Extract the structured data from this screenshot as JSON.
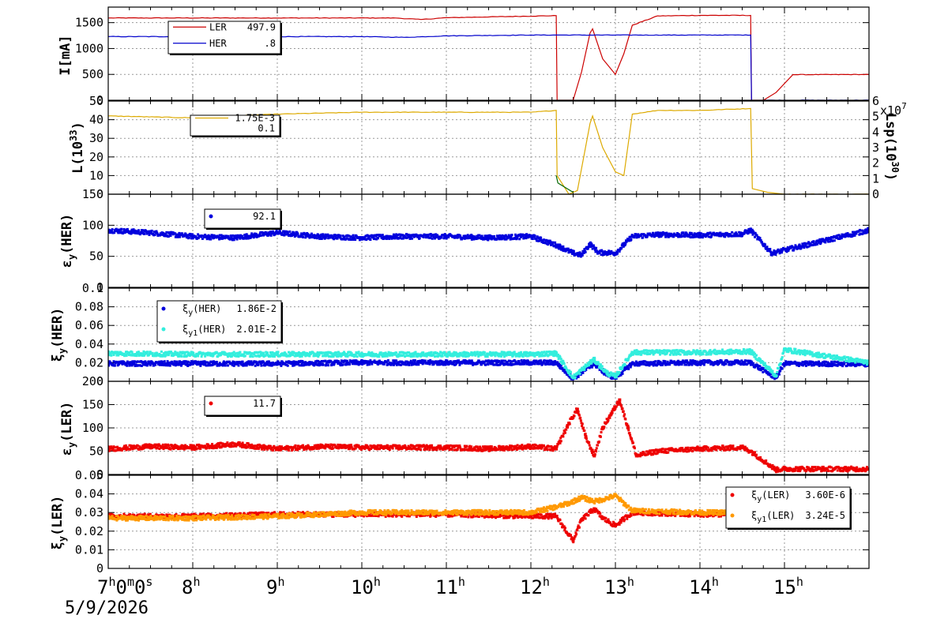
{
  "date_label": "5/9/2026",
  "chart_data": {
    "type": "line",
    "x_axis": {
      "unit": "hour of day",
      "range": [
        7.0,
        16.0
      ],
      "ticks": [
        {
          "value": 7,
          "label": "7",
          "sup": "h",
          "extra": [
            {
              "t": "0",
              "s": "m"
            },
            {
              "t": "0",
              "s": "s"
            }
          ]
        },
        {
          "value": 8,
          "label": "8",
          "sup": "h"
        },
        {
          "value": 9,
          "label": "9",
          "sup": "h"
        },
        {
          "value": 10,
          "label": "10",
          "sup": "h"
        },
        {
          "value": 11,
          "label": "11",
          "sup": "h"
        },
        {
          "value": 12,
          "label": "12",
          "sup": "h"
        },
        {
          "value": 13,
          "label": "13",
          "sup": "h"
        },
        {
          "value": 14,
          "label": "14",
          "sup": "h"
        },
        {
          "value": 15,
          "label": "15",
          "sup": "h"
        }
      ],
      "grid": true
    },
    "panels": [
      {
        "id": "current",
        "ylabel": "I[mA]",
        "ylim": [
          0,
          1800
        ],
        "yticks": [
          {
            "v": 0,
            "t": "0"
          },
          {
            "v": 500,
            "t": "500"
          },
          {
            "v": 1000,
            "t": "1000"
          },
          {
            "v": 1500,
            "t": "1500"
          }
        ],
        "legend": [
          {
            "name": "LER",
            "value": "497.9",
            "color": "#cc0000",
            "style": "line"
          },
          {
            "name": "HER",
            "value": ".8",
            "color": "#0000cc",
            "style": "line"
          }
        ],
        "series": [
          {
            "name": "LER",
            "color": "#cc0000",
            "kind": "line",
            "x": [
              7.0,
              10.4,
              10.7,
              11.0,
              12.3,
              12.31,
              12.5,
              12.6,
              12.7,
              12.73,
              12.85,
              13.0,
              13.1,
              13.2,
              13.5,
              14.0,
              14.6,
              14.61,
              14.75,
              14.9,
              15.1,
              16.0
            ],
            "y": [
              1590,
              1590,
              1560,
              1595,
              1635,
              0,
              0,
              550,
              1300,
              1380,
              800,
              500,
              900,
              1450,
              1630,
              1640,
              1640,
              0,
              0,
              150,
              495,
              497.9
            ]
          },
          {
            "name": "HER",
            "color": "#0000cc",
            "kind": "line",
            "x": [
              7.0,
              10.0,
              10.5,
              11.0,
              12.0,
              14.6,
              14.61,
              16.0
            ],
            "y": [
              1230,
              1230,
              1215,
              1245,
              1260,
              1260,
              0,
              0.8
            ]
          }
        ]
      },
      {
        "id": "luminosity",
        "ylabel": "L(10^33)",
        "ylim": [
          0,
          50
        ],
        "yticks": [
          {
            "v": 0,
            "t": "0"
          },
          {
            "v": 10,
            "t": "10"
          },
          {
            "v": 20,
            "t": "20"
          },
          {
            "v": 30,
            "t": "30"
          },
          {
            "v": 40,
            "t": "40"
          },
          {
            "v": 50,
            "t": "50"
          }
        ],
        "right_axis": {
          "label": "Lsp(10^30)",
          "multiplier": "x10",
          "multiplier_exp": "7",
          "ticks": [
            "0",
            "1",
            "2",
            "3",
            "4",
            "5",
            "6"
          ]
        },
        "legend": [
          {
            "name": "",
            "value": "1.75E-3",
            "color": "#ddaa00",
            "style": "line"
          },
          {
            "name": "",
            "value": "0.1",
            "color": "#000000",
            "style": "none"
          }
        ],
        "series": [
          {
            "name": "L",
            "color": "#ddaa00",
            "kind": "line",
            "x": [
              7.0,
              8.0,
              9.0,
              10.0,
              11.0,
              12.0,
              12.3,
              12.31,
              12.45,
              12.55,
              12.7,
              12.73,
              12.85,
              13.0,
              13.1,
              13.2,
              13.5,
              14.0,
              14.6,
              14.62,
              14.8,
              15.0,
              15.5,
              16.0
            ],
            "y": [
              42,
              41,
              43,
              44,
              44,
              44,
              45,
              10,
              0,
              2,
              38,
              42,
              25,
              12,
              10,
              43,
              45,
              45,
              46,
              3,
              1,
              0,
              0,
              0
            ]
          },
          {
            "name": "Lsp",
            "color": "#006600",
            "kind": "line",
            "x": [
              12.3,
              12.32,
              12.5
            ],
            "y": [
              10,
              6,
              1
            ]
          }
        ]
      },
      {
        "id": "eps_her",
        "ylabel": "εy(HER)",
        "ylim": [
          0,
          150
        ],
        "yticks": [
          {
            "v": 0,
            "t": "0"
          },
          {
            "v": 50,
            "t": "50"
          },
          {
            "v": 100,
            "t": "100"
          },
          {
            "v": 150,
            "t": "150"
          }
        ],
        "legend": [
          {
            "name": "",
            "value": "92.1",
            "color": "#0000dd",
            "style": "dot"
          }
        ],
        "series": [
          {
            "name": "εy(HER)",
            "color": "#0000dd",
            "kind": "scatter",
            "x": [
              7.0,
              7.5,
              8.0,
              8.5,
              9.0,
              9.5,
              10.0,
              10.5,
              11.0,
              11.5,
              12.0,
              12.3,
              12.35,
              12.5,
              12.6,
              12.7,
              12.8,
              12.9,
              13.0,
              13.2,
              13.5,
              14.0,
              14.5,
              14.6,
              14.85,
              16.0
            ],
            "y": [
              92,
              88,
              82,
              80,
              88,
              82,
              80,
              82,
              82,
              80,
              82,
              68,
              65,
              55,
              52,
              70,
              56,
              56,
              55,
              82,
              85,
              84,
              86,
              92,
              55,
              92.1
            ]
          }
        ]
      },
      {
        "id": "xi_her",
        "ylabel": "ξy(HER)",
        "ylim": [
          0,
          0.1
        ],
        "yticks": [
          {
            "v": 0,
            "t": "0"
          },
          {
            "v": 0.02,
            "t": "0.02"
          },
          {
            "v": 0.04,
            "t": "0.04"
          },
          {
            "v": 0.06,
            "t": "0.06"
          },
          {
            "v": 0.08,
            "t": "0.08"
          },
          {
            "v": 0.1,
            "t": "0.1"
          }
        ],
        "legend": [
          {
            "name": "ξy(HER)",
            "value": "1.86E-2",
            "color": "#0000dd",
            "style": "dot"
          },
          {
            "name": "ξy1(HER)",
            "value": "2.01E-2",
            "color": "#33eedd",
            "style": "dot"
          }
        ],
        "series": [
          {
            "name": "ξy(HER)",
            "color": "#0000dd",
            "kind": "scatter",
            "x": [
              7.0,
              8.0,
              9.0,
              10.0,
              11.0,
              12.0,
              12.3,
              12.5,
              12.7,
              12.75,
              12.9,
              13.0,
              13.2,
              14.0,
              14.6,
              14.9,
              15.0,
              16.0
            ],
            "y": [
              0.019,
              0.019,
              0.019,
              0.02,
              0.02,
              0.02,
              0.02,
              0.003,
              0.016,
              0.019,
              0.007,
              0.004,
              0.019,
              0.02,
              0.02,
              0.004,
              0.019,
              0.0186
            ]
          },
          {
            "name": "ξy1(HER)",
            "color": "#33eedd",
            "kind": "scatter",
            "x": [
              7.0,
              8.0,
              9.0,
              10.0,
              11.0,
              12.0,
              12.3,
              12.5,
              12.7,
              12.75,
              12.9,
              13.0,
              13.2,
              14.0,
              14.6,
              14.9,
              15.0,
              16.0
            ],
            "y": [
              0.03,
              0.029,
              0.029,
              0.029,
              0.029,
              0.029,
              0.03,
              0.004,
              0.02,
              0.023,
              0.009,
              0.005,
              0.031,
              0.031,
              0.032,
              0.006,
              0.034,
              0.0201
            ]
          }
        ]
      },
      {
        "id": "eps_ler",
        "ylabel": "εy(LER)",
        "ylim": [
          0,
          200
        ],
        "yticks": [
          {
            "v": 0,
            "t": "0"
          },
          {
            "v": 50,
            "t": "50"
          },
          {
            "v": 100,
            "t": "100"
          },
          {
            "v": 150,
            "t": "150"
          },
          {
            "v": 200,
            "t": "200"
          }
        ],
        "legend": [
          {
            "name": "",
            "value": "11.7",
            "color": "#ee0000",
            "style": "dot"
          }
        ],
        "series": [
          {
            "name": "εy(LER)",
            "color": "#ee0000",
            "kind": "scatter",
            "x": [
              7.0,
              7.5,
              8.0,
              8.5,
              9.0,
              9.5,
              10.0,
              10.5,
              11.0,
              11.5,
              12.0,
              12.3,
              12.45,
              12.55,
              12.65,
              12.75,
              12.85,
              12.95,
              13.05,
              13.15,
              13.25,
              13.5,
              14.0,
              14.5,
              14.6,
              14.9,
              15.0,
              16.0
            ],
            "y": [
              55,
              60,
              58,
              65,
              55,
              60,
              58,
              58,
              58,
              55,
              60,
              55,
              110,
              140,
              80,
              40,
              100,
              130,
              160,
              100,
              40,
              50,
              55,
              58,
              50,
              10,
              12,
              11.7
            ]
          }
        ]
      },
      {
        "id": "xi_ler",
        "ylabel": "ξy(LER)",
        "ylim": [
          0,
          0.05
        ],
        "yticks": [
          {
            "v": 0,
            "t": "0"
          },
          {
            "v": 0.01,
            "t": "0.01"
          },
          {
            "v": 0.02,
            "t": "0.02"
          },
          {
            "v": 0.03,
            "t": "0.03"
          },
          {
            "v": 0.04,
            "t": "0.04"
          },
          {
            "v": 0.05,
            "t": "0.05"
          }
        ],
        "legend": [
          {
            "name": "ξy(LER)",
            "value": "3.60E-6",
            "color": "#ee0000",
            "style": "dot"
          },
          {
            "name": "ξy1(LER)",
            "value": "3.24E-5",
            "color": "#ff9900",
            "style": "dot"
          }
        ],
        "series": [
          {
            "name": "ξy(LER)",
            "color": "#ee0000",
            "kind": "scatter",
            "x": [
              7.0,
              8.0,
              9.0,
              10.0,
              11.0,
              12.0,
              12.3,
              12.45,
              12.5,
              12.6,
              12.75,
              12.85,
              13.0,
              13.2,
              14.0,
              14.6
            ],
            "y": [
              0.028,
              0.028,
              0.029,
              0.029,
              0.029,
              0.028,
              0.028,
              0.018,
              0.015,
              0.026,
              0.032,
              0.027,
              0.023,
              0.03,
              0.029,
              0.029
            ]
          },
          {
            "name": "ξy1(LER)",
            "color": "#ff9900",
            "kind": "scatter",
            "x": [
              7.0,
              8.0,
              9.0,
              10.0,
              11.0,
              12.0,
              12.3,
              12.45,
              12.6,
              12.75,
              12.85,
              13.0,
              13.2,
              14.0,
              14.6
            ],
            "y": [
              0.027,
              0.027,
              0.028,
              0.03,
              0.03,
              0.03,
              0.033,
              0.035,
              0.038,
              0.036,
              0.037,
              0.039,
              0.031,
              0.03,
              0.03
            ]
          }
        ]
      }
    ]
  }
}
